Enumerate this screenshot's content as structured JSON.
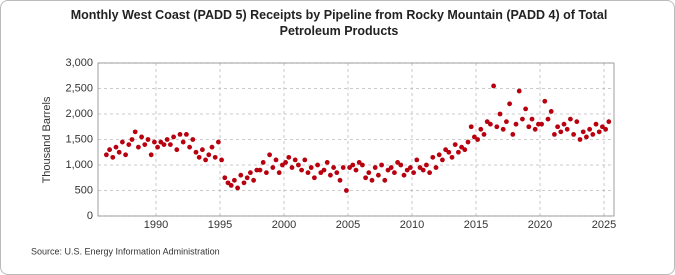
{
  "chart_data": {
    "type": "scatter",
    "title": "Monthly West Coast (PADD 5) Receipts by Pipeline from Rocky Mountain (PADD 4) of Total Petroleum Products",
    "y_label": "Thousand Barrels",
    "source": "Source: U.S. Energy Information Administration",
    "color": "#b8000f",
    "grid": true,
    "xlim": [
      1985.47,
      2025.78
    ],
    "ylim": [
      0,
      3000
    ],
    "xticks": [
      1990,
      1995,
      2000,
      2005,
      2010,
      2015,
      2020,
      2025
    ],
    "yticks": [
      0,
      500,
      {
        "value": 1000,
        "label": "1,000"
      },
      {
        "value": 1500,
        "label": "1,500"
      },
      {
        "value": 2000,
        "label": "2,000"
      },
      {
        "value": 2500,
        "label": "2,500"
      },
      {
        "value": 3000,
        "label": "3,000"
      }
    ],
    "x": [
      1986.125,
      1986.375,
      1986.625,
      1986.875,
      1987.125,
      1987.375,
      1987.625,
      1987.875,
      1988.125,
      1988.375,
      1988.625,
      1988.875,
      1989.125,
      1989.375,
      1989.625,
      1989.875,
      1990.125,
      1990.375,
      1990.625,
      1990.875,
      1991.125,
      1991.375,
      1991.625,
      1991.875,
      1992.125,
      1992.375,
      1992.625,
      1992.875,
      1993.125,
      1993.375,
      1993.625,
      1993.875,
      1994.125,
      1994.375,
      1994.625,
      1994.875,
      1995.125,
      1995.375,
      1995.625,
      1995.875,
      1996.125,
      1996.375,
      1996.625,
      1996.875,
      1997.125,
      1997.375,
      1997.625,
      1997.875,
      1998.125,
      1998.375,
      1998.625,
      1998.875,
      1999.125,
      1999.375,
      1999.625,
      1999.875,
      2000.125,
      2000.375,
      2000.625,
      2000.875,
      2001.125,
      2001.375,
      2001.625,
      2001.875,
      2002.125,
      2002.375,
      2002.625,
      2002.875,
      2003.125,
      2003.375,
      2003.625,
      2003.875,
      2004.125,
      2004.375,
      2004.625,
      2004.875,
      2005.125,
      2005.375,
      2005.625,
      2005.875,
      2006.125,
      2006.375,
      2006.625,
      2006.875,
      2007.125,
      2007.375,
      2007.625,
      2007.875,
      2008.125,
      2008.375,
      2008.625,
      2008.875,
      2009.125,
      2009.375,
      2009.625,
      2009.875,
      2010.125,
      2010.375,
      2010.625,
      2010.875,
      2011.125,
      2011.375,
      2011.625,
      2011.875,
      2012.125,
      2012.375,
      2012.625,
      2012.875,
      2013.125,
      2013.375,
      2013.625,
      2013.875,
      2014.125,
      2014.375,
      2014.625,
      2014.875,
      2015.125,
      2015.375,
      2015.625,
      2015.875,
      2016.125,
      2016.375,
      2016.625,
      2016.875,
      2017.125,
      2017.375,
      2017.625,
      2017.875,
      2018.125,
      2018.375,
      2018.625,
      2018.875,
      2019.125,
      2019.375,
      2019.625,
      2019.875,
      2020.125,
      2020.375,
      2020.625,
      2020.875,
      2021.125,
      2021.375,
      2021.625,
      2021.875,
      2022.125,
      2022.375,
      2022.625,
      2022.875,
      2023.125,
      2023.375,
      2023.625,
      2023.875,
      2024.125,
      2024.375,
      2024.625,
      2024.875,
      2025.125,
      2025.375
    ],
    "values": [
      1200,
      1300,
      1150,
      1350,
      1250,
      1450,
      1200,
      1400,
      1500,
      1650,
      1350,
      1550,
      1400,
      1500,
      1200,
      1450,
      1350,
      1450,
      1400,
      1500,
      1400,
      1550,
      1300,
      1600,
      1450,
      1600,
      1350,
      1500,
      1250,
      1150,
      1300,
      1100,
      1200,
      1350,
      1150,
      1450,
      1100,
      750,
      650,
      600,
      700,
      550,
      800,
      650,
      750,
      850,
      700,
      900,
      900,
      1050,
      850,
      1200,
      950,
      1100,
      850,
      1000,
      1050,
      1150,
      950,
      1100,
      1000,
      900,
      1100,
      850,
      950,
      750,
      1000,
      850,
      900,
      1050,
      800,
      950,
      850,
      700,
      950,
      500,
      950,
      1000,
      900,
      1050,
      1000,
      750,
      850,
      700,
      950,
      800,
      1000,
      700,
      900,
      950,
      850,
      1050,
      1000,
      800,
      900,
      950,
      850,
      1100,
      950,
      900,
      1000,
      850,
      1150,
      950,
      1200,
      1100,
      1300,
      1250,
      1150,
      1400,
      1250,
      1350,
      1300,
      1450,
      1750,
      1550,
      1500,
      1700,
      1600,
      1850,
      1800,
      2550,
      1750,
      2000,
      1700,
      1850,
      2200,
      1600,
      1800,
      2450,
      1900,
      2100,
      1750,
      1900,
      1700,
      1800,
      1800,
      2250,
      1900,
      2050,
      1600,
      1750,
      1650,
      1800,
      1700,
      1900,
      1600,
      1850,
      1500,
      1650,
      1550,
      1700,
      1600,
      1800,
      1650,
      1750,
      1700,
      1850
    ]
  }
}
